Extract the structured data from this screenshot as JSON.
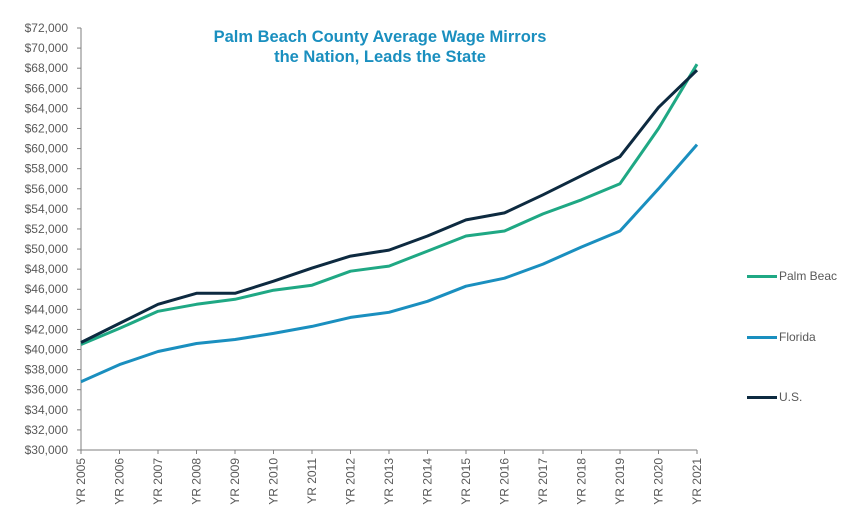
{
  "chart_data": {
    "type": "line",
    "title": "Palm Beach County Average Wage Mirrors the Nation, Leads the State",
    "title_lines": [
      "Palm Beach County Average Wage Mirrors",
      "the Nation, Leads the State"
    ],
    "xlabel": "",
    "ylabel": "",
    "ylim": [
      30000,
      72000
    ],
    "ytick_step": 2000,
    "yticks": [
      "$30,000",
      "$32,000",
      "$34,000",
      "$36,000",
      "$38,000",
      "$40,000",
      "$42,000",
      "$44,000",
      "$46,000",
      "$48,000",
      "$50,000",
      "$52,000",
      "$54,000",
      "$56,000",
      "$58,000",
      "$60,000",
      "$62,000",
      "$64,000",
      "$66,000",
      "$68,000",
      "$70,000",
      "$72,000"
    ],
    "categories": [
      "YR 2005",
      "YR 2006",
      "YR 2007",
      "YR 2008",
      "YR 2009",
      "YR 2010",
      "YR 2011",
      "YR 2012",
      "YR 2013",
      "YR 2014",
      "YR 2015",
      "YR 2016",
      "YR 2017",
      "YR 2018",
      "YR 2019",
      "YR 2020",
      "YR 2021"
    ],
    "grid": false,
    "legend_position": "right",
    "series": [
      {
        "name": "Palm Beac",
        "color": "#1fa884",
        "values": [
          40500,
          42100,
          43800,
          44500,
          45000,
          45900,
          46400,
          47800,
          48300,
          49800,
          51300,
          51800,
          53500,
          54900,
          56500,
          62000,
          68400
        ]
      },
      {
        "name": "Florida",
        "color": "#1a8fbf",
        "values": [
          36800,
          38500,
          39800,
          40600,
          41000,
          41600,
          42300,
          43200,
          43700,
          44800,
          46300,
          47100,
          48500,
          50200,
          51800,
          56000,
          60400
        ]
      },
      {
        "name": "U.S.",
        "color": "#0d2a40",
        "values": [
          40700,
          42600,
          44500,
          45600,
          45600,
          46800,
          48100,
          49300,
          49900,
          51300,
          52900,
          53600,
          55400,
          57300,
          59200,
          64100,
          67800
        ]
      }
    ]
  },
  "legend": {
    "items": [
      {
        "label": "Palm Beac",
        "color": "#1fa884"
      },
      {
        "label": "Florida",
        "color": "#1a8fbf"
      },
      {
        "label": "U.S.",
        "color": "#0d2a40"
      }
    ]
  }
}
